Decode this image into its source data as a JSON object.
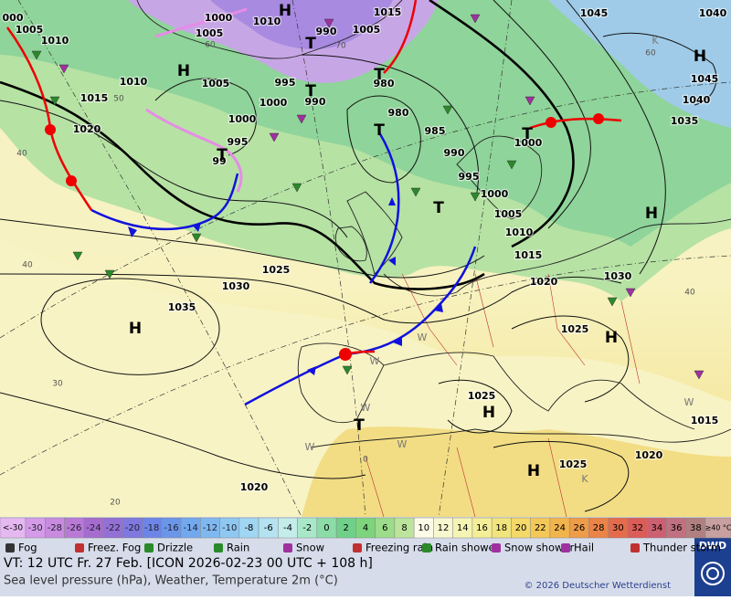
{
  "map": {
    "pressure_labels": [
      "000",
      "1005",
      "1010",
      "1015",
      "1020",
      "1010",
      "1005",
      "1000",
      "1005",
      "1010",
      "990",
      "1005",
      "1015",
      "995",
      "1000",
      "990",
      "1000",
      "995",
      "99",
      "980",
      "980",
      "985",
      "990",
      "995",
      "1000",
      "1005",
      "1010",
      "1015",
      "1000",
      "1045",
      "1040",
      "1045",
      "1040",
      "1035",
      "1030",
      "1025",
      "1020",
      "1025",
      "1030",
      "1035",
      "1025",
      "1020",
      "1025",
      "1015",
      "1020"
    ],
    "temperature_labels": [
      "60",
      "50",
      "40",
      "40",
      "30",
      "20",
      "70",
      "60",
      "40",
      "0"
    ],
    "air_mass_labels": [
      "K",
      "K",
      "W",
      "W",
      "W",
      "W",
      "W",
      "W"
    ],
    "pressure_centers": [
      "H",
      "T",
      "T",
      "T",
      "T",
      "T",
      "T",
      "T",
      "H",
      "H",
      "H",
      "H",
      "H",
      "H",
      "T",
      "H"
    ]
  },
  "temperature_scale": {
    "low_label": "<-30",
    "high_label": "≥40 °C",
    "low_color": "#e6b8f2",
    "high_color": "#c8a0a0",
    "steps": [
      {
        "value": -30,
        "color": "#d59be8"
      },
      {
        "value": -28,
        "color": "#c88be0"
      },
      {
        "value": -26,
        "color": "#b97ad6"
      },
      {
        "value": -24,
        "color": "#a56ccf"
      },
      {
        "value": -22,
        "color": "#9370d6"
      },
      {
        "value": -20,
        "color": "#7f78de"
      },
      {
        "value": -18,
        "color": "#6d85e6"
      },
      {
        "value": -16,
        "color": "#6a96ea"
      },
      {
        "value": -14,
        "color": "#72a8ee"
      },
      {
        "value": -12,
        "color": "#7fb8f0"
      },
      {
        "value": -10,
        "color": "#8ec8f2"
      },
      {
        "value": -8,
        "color": "#a0d6f2"
      },
      {
        "value": -6,
        "color": "#b4e2f0"
      },
      {
        "value": -4,
        "color": "#c4ecea"
      },
      {
        "value": -2,
        "color": "#a8e8c8"
      },
      {
        "value": 0,
        "color": "#8cdca8"
      },
      {
        "value": 2,
        "color": "#70d08a"
      },
      {
        "value": 4,
        "color": "#7cd47c"
      },
      {
        "value": 6,
        "color": "#9cdc8a"
      },
      {
        "value": 8,
        "color": "#bce49c"
      },
      {
        "value": 10,
        "color": "#fcfce8"
      },
      {
        "value": 12,
        "color": "#f8f8d0"
      },
      {
        "value": 14,
        "color": "#f6f4b4"
      },
      {
        "value": 16,
        "color": "#f4ee98"
      },
      {
        "value": 18,
        "color": "#f2e47c"
      },
      {
        "value": 20,
        "color": "#f4d868"
      },
      {
        "value": 22,
        "color": "#f4c858"
      },
      {
        "value": 24,
        "color": "#f2b44c"
      },
      {
        "value": 26,
        "color": "#ee9c48"
      },
      {
        "value": 28,
        "color": "#ea8448"
      },
      {
        "value": 30,
        "color": "#e46c4c"
      },
      {
        "value": 32,
        "color": "#dc5c58"
      },
      {
        "value": 34,
        "color": "#cc6070"
      },
      {
        "value": 36,
        "color": "#c07080"
      },
      {
        "value": 38,
        "color": "#b08080"
      }
    ]
  },
  "weather_legend": [
    "Fog",
    "Freez. Fog",
    "Drizzle",
    "Rain",
    "Snow",
    "Freezing rain",
    "Rain shower",
    "Snow shower",
    "Hail",
    "Thunder storm"
  ],
  "footer": {
    "valid_time": "VT: 12 UTC Fr.  27 Feb. [ICON 2026-02-23  00 UTC + 108 h]",
    "description": "Sea level pressure (hPa), Weather, Temperature 2m (°C)",
    "copyright": "© 2026 Deutscher Wetterdienst",
    "logo": "DWD"
  }
}
